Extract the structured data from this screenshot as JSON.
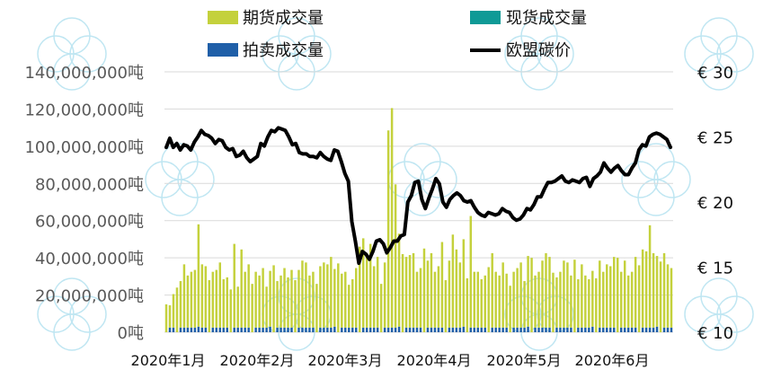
{
  "chart_data": {
    "type": "bar+line",
    "title": "",
    "legend_placement": "top",
    "colors": {
      "futures": "#c4d13c",
      "spot": "#0f9a96",
      "auction": "#1f5fa8",
      "price": "#000000",
      "grid": "#d9d9d9"
    },
    "legend": [
      {
        "key": "futures",
        "label": "期货成交量",
        "kind": "bar"
      },
      {
        "key": "spot",
        "label": "现货成交量",
        "kind": "bar"
      },
      {
        "key": "auction",
        "label": "拍卖成交量",
        "kind": "bar"
      },
      {
        "key": "price",
        "label": "欧盟碳价",
        "kind": "line"
      }
    ],
    "y_left": {
      "min": 0,
      "max": 140000000,
      "step": 20000000,
      "ticks": [
        "0吨",
        "20,000,000吨",
        "40,000,000吨",
        "60,000,000吨",
        "80,000,000吨",
        "100,000,000吨",
        "120,000,000吨",
        "140,000,000吨"
      ]
    },
    "y_right": {
      "min": 10,
      "max": 30,
      "step": 5,
      "ticks": [
        "€ 10",
        "€ 15",
        "€ 20",
        "€ 25",
        "€ 30"
      ]
    },
    "x_months": [
      "2020年1月",
      "2020年2月",
      "2020年3月",
      "2020年4月",
      "2020年5月",
      "2020年6月"
    ],
    "grid": true,
    "futures_volume": [
      15,
      12,
      18,
      24,
      25,
      34,
      28,
      30,
      31,
      55,
      34,
      33,
      28,
      30,
      31,
      35,
      26,
      27,
      23,
      45,
      22,
      42,
      30,
      34,
      26,
      30,
      28,
      32,
      22,
      30,
      36,
      25,
      28,
      32,
      27,
      31,
      28,
      31,
      36,
      35,
      28,
      30,
      26,
      33,
      35,
      34,
      38,
      31,
      37,
      29,
      30,
      23,
      26,
      32,
      46,
      48,
      40,
      45,
      33,
      38,
      26,
      35,
      106,
      118,
      77,
      50,
      42,
      38,
      39,
      40,
      30,
      32,
      45,
      36,
      40,
      30,
      33,
      46,
      28,
      36,
      50,
      42,
      35,
      47,
      29,
      60,
      30,
      30,
      26,
      28,
      35,
      40,
      30,
      28,
      35,
      29,
      25,
      30,
      32,
      35,
      25,
      38,
      40,
      28,
      30,
      36,
      40,
      38,
      32,
      27,
      30,
      36,
      35,
      28,
      39,
      26,
      34,
      28,
      26,
      30,
      29,
      36,
      30,
      34,
      33,
      38,
      40,
      30,
      36,
      28,
      30,
      38,
      36,
      42,
      41,
      55,
      40,
      38,
      38,
      40,
      34,
      32
    ],
    "auction_volume": [
      0,
      2.5,
      2.5,
      0,
      2.5,
      2.5,
      2.5,
      2.5,
      2.5,
      3,
      2.5,
      2.5,
      0,
      2.5,
      2.5,
      2.5,
      2.5,
      2.5,
      0,
      2.5,
      2.5,
      2.5,
      2.5,
      2.5,
      0,
      2.5,
      2.5,
      2.5,
      2.5,
      3,
      0,
      2.5,
      2.5,
      2.5,
      2.5,
      2.5,
      0,
      2.5,
      2.5,
      2.5,
      2.5,
      2.5,
      0,
      2.5,
      2.5,
      2.5,
      2.5,
      3,
      0,
      2.5,
      2.5,
      2.5,
      2.5,
      2.5,
      0,
      2.5,
      2.5,
      2.5,
      2.5,
      2.5,
      0,
      2.5,
      2.5,
      2.5,
      2.5,
      3,
      0,
      2.5,
      2.5,
      2.5,
      2.5,
      2.5,
      0,
      2.5,
      2.5,
      2.5,
      2.5,
      2.5,
      0,
      2.5,
      2.5,
      2.5,
      2.5,
      3,
      0,
      2.5,
      2.5,
      2.5,
      2.5,
      2.5,
      0,
      2.5,
      2.5,
      2.5,
      2.5,
      2.5,
      0,
      2.5,
      2.5,
      2.5,
      2.5,
      3,
      0,
      2.5,
      2.5,
      2.5,
      2.5,
      2.5,
      0,
      2.5,
      2.5,
      2.5,
      2.5,
      2.5,
      0,
      2.5,
      2.5,
      2.5,
      2.5,
      3,
      0,
      2.5,
      2.5,
      2.5,
      2.5,
      2.5,
      0,
      2.5,
      2.5,
      2.5,
      2.5,
      2.5,
      0,
      2.5,
      2.5,
      2.5,
      2.5,
      3,
      0,
      2.5,
      2.5,
      2.5,
      2.5,
      2.5
    ],
    "price_series": [
      24.2,
      24.9,
      24.2,
      24.5,
      24.0,
      24.4,
      24.3,
      24.0,
      24.6,
      25.0,
      25.5,
      25.2,
      25.1,
      24.9,
      24.5,
      24.8,
      24.7,
      24.2,
      24.0,
      24.1,
      23.5,
      23.6,
      23.9,
      23.4,
      23.1,
      23.3,
      23.5,
      24.5,
      24.3,
      25.0,
      25.5,
      25.4,
      25.7,
      25.6,
      25.5,
      25.0,
      24.4,
      24.5,
      23.8,
      23.7,
      23.7,
      23.5,
      23.5,
      23.4,
      23.8,
      23.5,
      23.3,
      23.2,
      24.0,
      23.9,
      23.1,
      22.2,
      21.6,
      18.5,
      17.0,
      15.3,
      16.2,
      16.0,
      15.6,
      16.2,
      17.0,
      17.1,
      16.8,
      16.1,
      16.5,
      17.0,
      17.0,
      17.4,
      17.5,
      20.0,
      20.5,
      21.5,
      21.6,
      20.2,
      19.5,
      20.3,
      21.0,
      21.8,
      21.4,
      20.0,
      19.6,
      20.2,
      20.5,
      20.7,
      20.5,
      20.1,
      20.0,
      20.1,
      19.6,
      19.2,
      19.0,
      18.9,
      19.2,
      19.1,
      19.0,
      19.1,
      19.5,
      19.3,
      19.2,
      18.8,
      18.6,
      18.7,
      19.0,
      19.5,
      19.4,
      19.8,
      20.4,
      20.4,
      21.0,
      21.5,
      21.5,
      21.6,
      21.8,
      22.0,
      21.6,
      21.5,
      21.7,
      21.6,
      21.5,
      21.8,
      21.9,
      21.2,
      21.8,
      22.0,
      22.3,
      23.0,
      22.6,
      22.3,
      22.6,
      22.8,
      22.4,
      22.1,
      22.1,
      22.6,
      23.0,
      24.0,
      24.4,
      24.3,
      25.0,
      25.2,
      25.3,
      25.2,
      25.0,
      24.8,
      24.2
    ]
  }
}
